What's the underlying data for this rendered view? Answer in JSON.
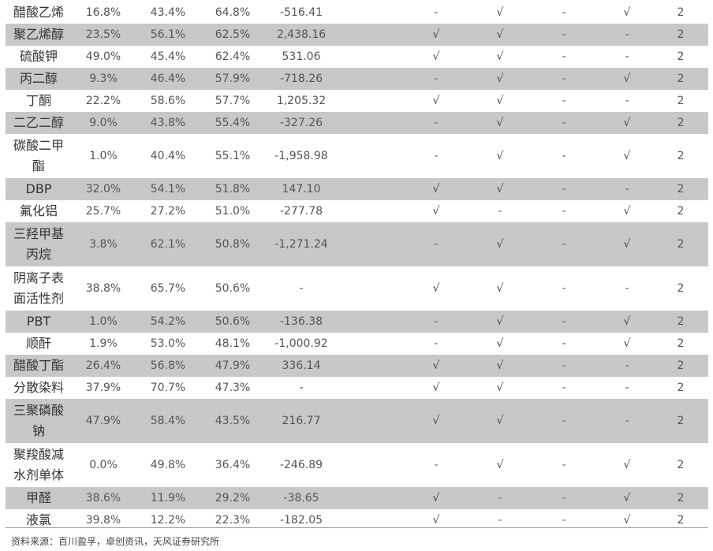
{
  "rows": [
    {
      "name": [
        "醋酸乙烯"
      ],
      "c1": "16.8%",
      "c2": "43.4%",
      "c3": "64.8%",
      "c4": "-516.41",
      "m": [
        "-",
        "√",
        "-",
        "√"
      ],
      "n": "2"
    },
    {
      "name": [
        "聚乙烯醇"
      ],
      "c1": "23.5%",
      "c2": "56.1%",
      "c3": "62.5%",
      "c4": "2,438.16",
      "m": [
        "√",
        "√",
        "-",
        "-"
      ],
      "n": "2"
    },
    {
      "name": [
        "硫酸钾"
      ],
      "c1": "49.0%",
      "c2": "45.4%",
      "c3": "62.4%",
      "c4": "531.06",
      "m": [
        "√",
        "√",
        "-",
        "-"
      ],
      "n": "2"
    },
    {
      "name": [
        "丙二醇"
      ],
      "c1": "9.3%",
      "c2": "46.4%",
      "c3": "57.9%",
      "c4": "-718.26",
      "m": [
        "-",
        "√",
        "-",
        "√"
      ],
      "n": "2"
    },
    {
      "name": [
        "丁酮"
      ],
      "c1": "22.2%",
      "c2": "58.6%",
      "c3": "57.7%",
      "c4": "1,205.32",
      "m": [
        "√",
        "√",
        "-",
        "-"
      ],
      "n": "2"
    },
    {
      "name": [
        "二乙二醇"
      ],
      "c1": "9.0%",
      "c2": "43.8%",
      "c3": "55.4%",
      "c4": "-327.26",
      "m": [
        "-",
        "√",
        "-",
        "√"
      ],
      "n": "2"
    },
    {
      "name": [
        "碳酸二甲",
        "酯"
      ],
      "c1": "1.0%",
      "c2": "40.4%",
      "c3": "55.1%",
      "c4": "-1,958.98",
      "m": [
        "-",
        "√",
        "-",
        "√"
      ],
      "n": "2"
    },
    {
      "name": [
        "DBP"
      ],
      "c1": "32.0%",
      "c2": "54.1%",
      "c3": "51.8%",
      "c4": "147.10",
      "m": [
        "√",
        "√",
        "-",
        "-"
      ],
      "n": "2"
    },
    {
      "name": [
        "氟化铝"
      ],
      "c1": "25.7%",
      "c2": "27.2%",
      "c3": "51.0%",
      "c4": "-277.78",
      "m": [
        "√",
        "-",
        "-",
        "√"
      ],
      "n": "2"
    },
    {
      "name": [
        "三羟甲基",
        "丙烷"
      ],
      "c1": "3.8%",
      "c2": "62.1%",
      "c3": "50.8%",
      "c4": "-1,271.24",
      "m": [
        "-",
        "√",
        "-",
        "√"
      ],
      "n": "2"
    },
    {
      "name": [
        "阴离子表",
        "面活性剂"
      ],
      "c1": "38.8%",
      "c2": "65.7%",
      "c3": "50.6%",
      "c4": "-",
      "m": [
        "√",
        "√",
        "-",
        "-"
      ],
      "n": "2"
    },
    {
      "name": [
        "PBT"
      ],
      "c1": "1.0%",
      "c2": "54.2%",
      "c3": "50.6%",
      "c4": "-136.38",
      "m": [
        "-",
        "√",
        "-",
        "√"
      ],
      "n": "2"
    },
    {
      "name": [
        "顺酐"
      ],
      "c1": "1.9%",
      "c2": "53.0%",
      "c3": "48.1%",
      "c4": "-1,000.92",
      "m": [
        "-",
        "√",
        "-",
        "√"
      ],
      "n": "2"
    },
    {
      "name": [
        "醋酸丁酯"
      ],
      "c1": "26.4%",
      "c2": "56.8%",
      "c3": "47.9%",
      "c4": "336.14",
      "m": [
        "√",
        "√",
        "-",
        "-"
      ],
      "n": "2"
    },
    {
      "name": [
        "分散染料"
      ],
      "c1": "37.9%",
      "c2": "70.7%",
      "c3": "47.3%",
      "c4": "-",
      "m": [
        "√",
        "√",
        "-",
        "-"
      ],
      "n": "2"
    },
    {
      "name": [
        "三聚磷酸",
        "钠"
      ],
      "c1": "47.9%",
      "c2": "58.4%",
      "c3": "43.5%",
      "c4": "216.77",
      "m": [
        "√",
        "√",
        "-",
        "-"
      ],
      "n": "2"
    },
    {
      "name": [
        "聚羧酸减",
        "水剂单体"
      ],
      "c1": "0.0%",
      "c2": "49.8%",
      "c3": "36.4%",
      "c4": "-246.89",
      "m": [
        "-",
        "√",
        "-",
        "√"
      ],
      "n": "2"
    },
    {
      "name": [
        "甲醛"
      ],
      "c1": "38.6%",
      "c2": "11.9%",
      "c3": "29.2%",
      "c4": "-38.65",
      "m": [
        "√",
        "-",
        "-",
        "√"
      ],
      "n": "2"
    },
    {
      "name": [
        "液氯"
      ],
      "c1": "39.8%",
      "c2": "12.2%",
      "c3": "22.3%",
      "c4": "-182.05",
      "m": [
        "√",
        "-",
        "-",
        "√"
      ],
      "n": "2"
    }
  ],
  "source": "资料来源：百川盈孚，卓创资讯，天风证券研究所"
}
